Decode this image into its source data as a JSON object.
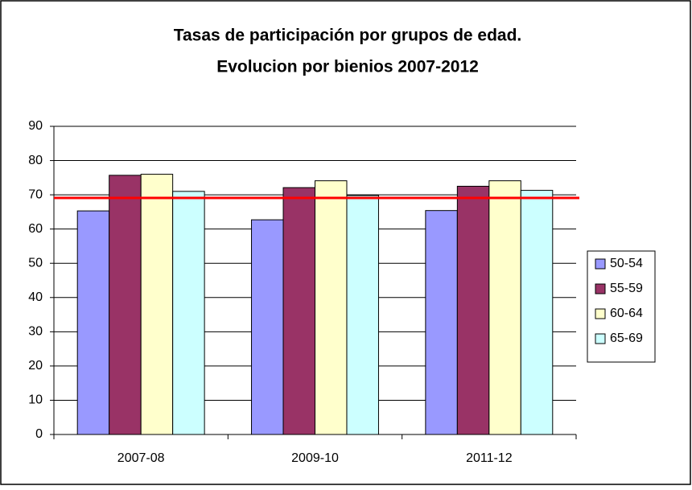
{
  "chart_data": {
    "type": "bar",
    "title": [
      "Tasas de participación por grupos de edad.",
      "Evolucion por bienios 2007-2012"
    ],
    "categories": [
      "2007-08",
      "2009-10",
      "2011-12"
    ],
    "series": [
      {
        "name": "50-54",
        "color": "#9999ff",
        "values": [
          65.3,
          62.7,
          65.4
        ]
      },
      {
        "name": "55-59",
        "color": "#993366",
        "values": [
          75.7,
          72.1,
          72.5
        ]
      },
      {
        "name": "60-64",
        "color": "#ffffcc",
        "values": [
          76.0,
          74.1,
          74.1
        ]
      },
      {
        "name": "65-69",
        "color": "#ccffff",
        "values": [
          71.0,
          69.8,
          71.3
        ]
      }
    ],
    "reference_line": {
      "value": 69.1,
      "color": "#ff0000"
    },
    "ylim": [
      0,
      90
    ],
    "yticks": [
      0,
      10,
      20,
      30,
      40,
      50,
      60,
      70,
      80,
      90
    ],
    "grid": true,
    "legend": "right"
  }
}
